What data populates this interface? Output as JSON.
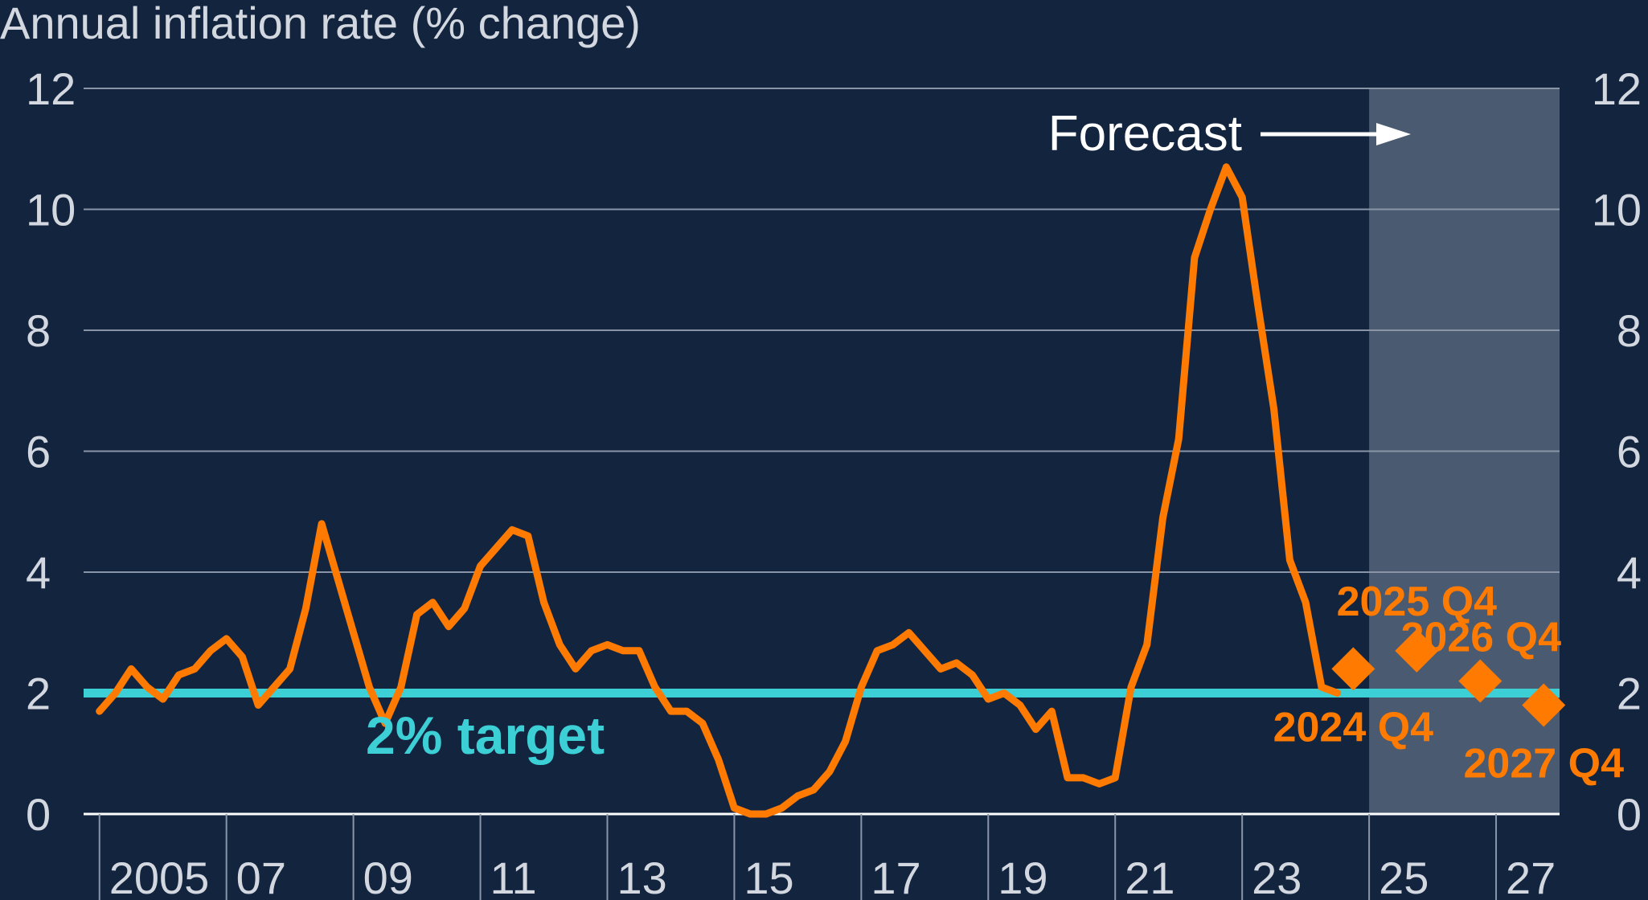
{
  "chart_data": {
    "type": "line",
    "title": "Annual inflation rate (% change)",
    "ylim": [
      0,
      12
    ],
    "xlim": [
      2004.75,
      2028.0
    ],
    "y_ticks": [
      0,
      2,
      4,
      6,
      8,
      10,
      12
    ],
    "x_ticks": [
      {
        "x": 2005,
        "label": "2005"
      },
      {
        "x": 2007,
        "label": "07"
      },
      {
        "x": 2009,
        "label": "09"
      },
      {
        "x": 2011,
        "label": "11"
      },
      {
        "x": 2013,
        "label": "13"
      },
      {
        "x": 2015,
        "label": "15"
      },
      {
        "x": 2017,
        "label": "17"
      },
      {
        "x": 2019,
        "label": "19"
      },
      {
        "x": 2021,
        "label": "21"
      },
      {
        "x": 2023,
        "label": "23"
      },
      {
        "x": 2025,
        "label": "25"
      },
      {
        "x": 2027,
        "label": "27"
      }
    ],
    "grid": true,
    "colors": {
      "background": "#13243f",
      "line": "#ff7a00",
      "target": "#3ccfd6",
      "forecast_shade": "#4a5a70",
      "text": "#ffffff",
      "tick_text": "#d3d8e0",
      "grid": "#8995a7"
    },
    "target": {
      "value": 2,
      "label": "2% target"
    },
    "forecast": {
      "start": 2025.0,
      "end": 2028.0,
      "label": "Forecast"
    },
    "series": [
      {
        "values": [
          {
            "x": 2005.0,
            "y": 1.7
          },
          {
            "x": 2005.25,
            "y": 2.0
          },
          {
            "x": 2005.5,
            "y": 2.4
          },
          {
            "x": 2005.75,
            "y": 2.1
          },
          {
            "x": 2006.0,
            "y": 1.9
          },
          {
            "x": 2006.25,
            "y": 2.3
          },
          {
            "x": 2006.5,
            "y": 2.4
          },
          {
            "x": 2006.75,
            "y": 2.7
          },
          {
            "x": 2007.0,
            "y": 2.9
          },
          {
            "x": 2007.25,
            "y": 2.6
          },
          {
            "x": 2007.5,
            "y": 1.8
          },
          {
            "x": 2007.75,
            "y": 2.1
          },
          {
            "x": 2008.0,
            "y": 2.4
          },
          {
            "x": 2008.25,
            "y": 3.4
          },
          {
            "x": 2008.5,
            "y": 4.8
          },
          {
            "x": 2008.75,
            "y": 3.9
          },
          {
            "x": 2009.0,
            "y": 3.0
          },
          {
            "x": 2009.25,
            "y": 2.1
          },
          {
            "x": 2009.5,
            "y": 1.5
          },
          {
            "x": 2009.75,
            "y": 2.1
          },
          {
            "x": 2010.0,
            "y": 3.3
          },
          {
            "x": 2010.25,
            "y": 3.5
          },
          {
            "x": 2010.5,
            "y": 3.1
          },
          {
            "x": 2010.75,
            "y": 3.4
          },
          {
            "x": 2011.0,
            "y": 4.1
          },
          {
            "x": 2011.25,
            "y": 4.4
          },
          {
            "x": 2011.5,
            "y": 4.7
          },
          {
            "x": 2011.75,
            "y": 4.6
          },
          {
            "x": 2012.0,
            "y": 3.5
          },
          {
            "x": 2012.25,
            "y": 2.8
          },
          {
            "x": 2012.5,
            "y": 2.4
          },
          {
            "x": 2012.75,
            "y": 2.7
          },
          {
            "x": 2013.0,
            "y": 2.8
          },
          {
            "x": 2013.25,
            "y": 2.7
          },
          {
            "x": 2013.5,
            "y": 2.7
          },
          {
            "x": 2013.75,
            "y": 2.1
          },
          {
            "x": 2014.0,
            "y": 1.7
          },
          {
            "x": 2014.25,
            "y": 1.7
          },
          {
            "x": 2014.5,
            "y": 1.5
          },
          {
            "x": 2014.75,
            "y": 0.9
          },
          {
            "x": 2015.0,
            "y": 0.1
          },
          {
            "x": 2015.25,
            "y": 0.0
          },
          {
            "x": 2015.5,
            "y": 0.0
          },
          {
            "x": 2015.75,
            "y": 0.1
          },
          {
            "x": 2016.0,
            "y": 0.3
          },
          {
            "x": 2016.25,
            "y": 0.4
          },
          {
            "x": 2016.5,
            "y": 0.7
          },
          {
            "x": 2016.75,
            "y": 1.2
          },
          {
            "x": 2017.0,
            "y": 2.1
          },
          {
            "x": 2017.25,
            "y": 2.7
          },
          {
            "x": 2017.5,
            "y": 2.8
          },
          {
            "x": 2017.75,
            "y": 3.0
          },
          {
            "x": 2018.0,
            "y": 2.7
          },
          {
            "x": 2018.25,
            "y": 2.4
          },
          {
            "x": 2018.5,
            "y": 2.5
          },
          {
            "x": 2018.75,
            "y": 2.3
          },
          {
            "x": 2019.0,
            "y": 1.9
          },
          {
            "x": 2019.25,
            "y": 2.0
          },
          {
            "x": 2019.5,
            "y": 1.8
          },
          {
            "x": 2019.75,
            "y": 1.4
          },
          {
            "x": 2020.0,
            "y": 1.7
          },
          {
            "x": 2020.25,
            "y": 0.6
          },
          {
            "x": 2020.5,
            "y": 0.6
          },
          {
            "x": 2020.75,
            "y": 0.5
          },
          {
            "x": 2021.0,
            "y": 0.6
          },
          {
            "x": 2021.25,
            "y": 2.1
          },
          {
            "x": 2021.5,
            "y": 2.8
          },
          {
            "x": 2021.75,
            "y": 4.9
          },
          {
            "x": 2022.0,
            "y": 6.2
          },
          {
            "x": 2022.25,
            "y": 9.2
          },
          {
            "x": 2022.5,
            "y": 10.0
          },
          {
            "x": 2022.75,
            "y": 10.7
          },
          {
            "x": 2023.0,
            "y": 10.2
          },
          {
            "x": 2023.25,
            "y": 8.4
          },
          {
            "x": 2023.5,
            "y": 6.7
          },
          {
            "x": 2023.75,
            "y": 4.2
          },
          {
            "x": 2024.0,
            "y": 3.5
          },
          {
            "x": 2024.25,
            "y": 2.1
          },
          {
            "x": 2024.5,
            "y": 2.0
          }
        ]
      }
    ],
    "forecast_points": [
      {
        "x": 2024.75,
        "y": 2.4,
        "label": "2024 Q4",
        "label_position": "below"
      },
      {
        "x": 2025.75,
        "y": 2.7,
        "label": "2025 Q4",
        "label_position": "above"
      },
      {
        "x": 2026.75,
        "y": 2.2,
        "label": "2026 Q4",
        "label_position": "above-right"
      },
      {
        "x": 2027.75,
        "y": 1.8,
        "label": "2027 Q4",
        "label_position": "below"
      }
    ]
  }
}
